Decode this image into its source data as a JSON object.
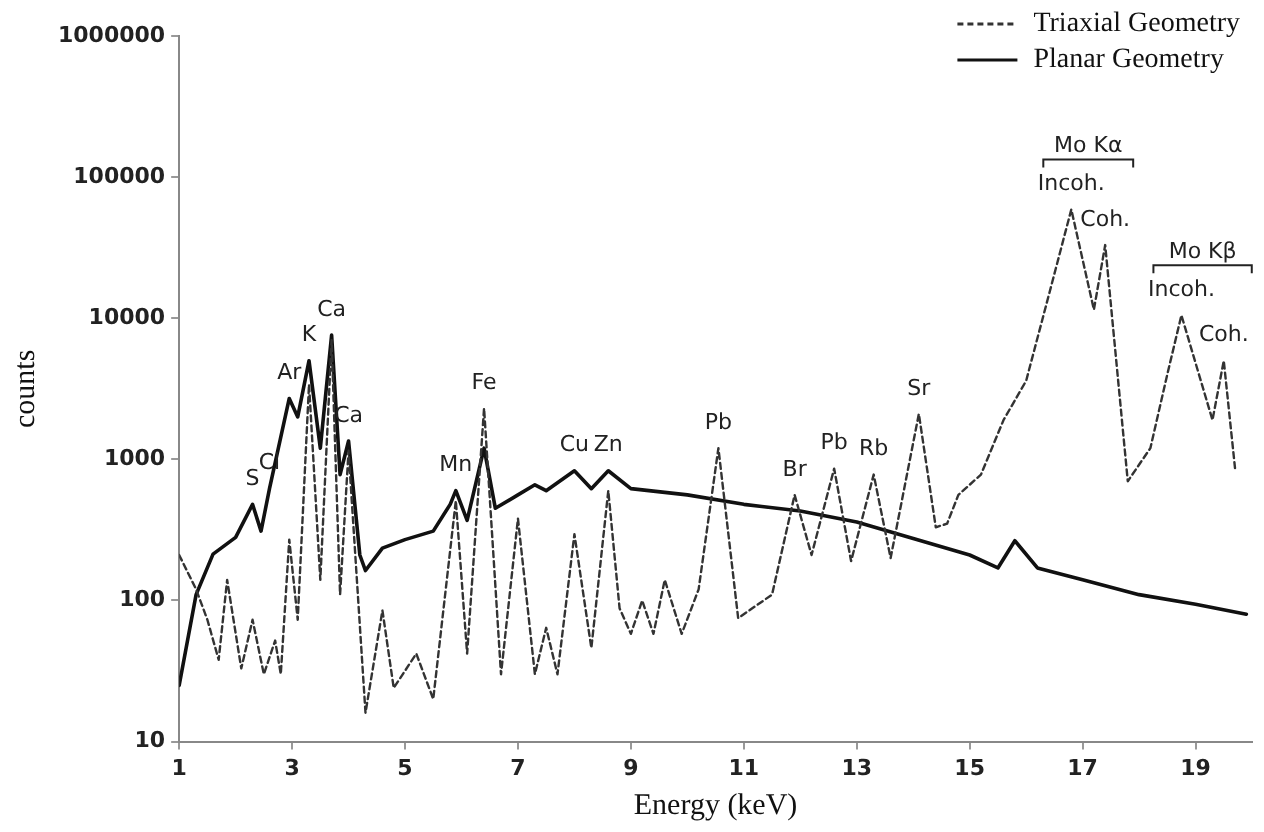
{
  "chart_data": {
    "type": "line",
    "xlabel": "Energy (keV)",
    "ylabel": "counts",
    "log": "y",
    "grid": false,
    "legend": "top right",
    "marker": "none",
    "xlim": [
      1,
      20
    ],
    "xticks": [
      1,
      3,
      5,
      7,
      9,
      11,
      13,
      15,
      17,
      19
    ],
    "ylim": [
      10,
      1000000
    ],
    "yticks": [
      10,
      100,
      1000,
      10000,
      100000,
      1000000
    ],
    "series": [
      {
        "name": "Triaxial Geometry",
        "color": "#333333",
        "line_style": "dashed",
        "x": [
          1,
          1.3,
          1.5,
          1.7,
          1.85,
          2.1,
          2.3,
          2.5,
          2.7,
          2.8,
          2.95,
          3.1,
          3.3,
          3.5,
          3.7,
          3.85,
          4,
          4.3,
          4.6,
          4.8,
          5.2,
          5.5,
          5.9,
          6.1,
          6.4,
          6.7,
          7,
          7.3,
          7.5,
          7.7,
          8,
          8.3,
          8.6,
          8.8,
          9,
          9.2,
          9.4,
          9.6,
          9.9,
          10.2,
          10.55,
          10.9,
          11.5,
          11.9,
          12.2,
          12.6,
          12.9,
          13.3,
          13.6,
          14.1,
          14.4,
          14.6,
          14.8,
          15.2,
          15.6,
          16,
          16.4,
          16.8,
          17.2,
          17.4,
          17.8,
          18.2,
          18.5,
          18.75,
          19.3,
          19.5,
          19.7
        ],
        "values": [
          210,
          120,
          73,
          38,
          140,
          33,
          73,
          30,
          52,
          30,
          270,
          73,
          3400,
          140,
          7000,
          110,
          1150,
          16,
          85,
          24,
          42,
          20,
          510,
          42,
          2300,
          30,
          380,
          30,
          64,
          30,
          295,
          46,
          600,
          88,
          58,
          100,
          58,
          140,
          58,
          120,
          1200,
          75,
          110,
          560,
          210,
          860,
          190,
          780,
          200,
          2100,
          330,
          350,
          560,
          780,
          1900,
          3600,
          14500,
          59000,
          11500,
          33000,
          700,
          1200,
          4000,
          10500,
          1900,
          5000,
          860
        ]
      },
      {
        "name": "Planar Geometry",
        "color": "#111111",
        "line_style": "solid",
        "x": [
          1,
          1.3,
          1.6,
          2,
          2.3,
          2.45,
          2.6,
          2.95,
          3.1,
          3.3,
          3.5,
          3.7,
          3.85,
          4,
          4.2,
          4.3,
          4.6,
          5,
          5.5,
          5.8,
          5.9,
          6.1,
          6.4,
          6.6,
          7,
          7.3,
          7.5,
          8,
          8.3,
          8.6,
          9,
          10,
          11,
          12,
          13,
          14,
          15,
          15.5,
          15.8,
          16.2,
          17,
          18,
          19,
          19.9
        ],
        "values": [
          25,
          110,
          213,
          280,
          480,
          310,
          620,
          2700,
          2000,
          5000,
          1200,
          7600,
          780,
          1350,
          210,
          163,
          235,
          270,
          310,
          480,
          600,
          370,
          1200,
          450,
          560,
          660,
          600,
          830,
          620,
          830,
          620,
          560,
          480,
          430,
          360,
          275,
          210,
          170,
          265,
          170,
          140,
          110,
          94,
          80
        ]
      }
    ],
    "annotations": [
      {
        "text": "S",
        "x": 2.3,
        "y": 480
      },
      {
        "text": "Cl",
        "x": 2.6,
        "y": 620
      },
      {
        "text": "Ar",
        "x": 2.95,
        "y": 2700
      },
      {
        "text": "K",
        "x": 3.3,
        "y": 5000
      },
      {
        "text": "Ca",
        "x": 3.7,
        "y": 7600
      },
      {
        "text": "Ca",
        "x": 4,
        "y": 1350
      },
      {
        "text": "Mn",
        "x": 5.9,
        "y": 600
      },
      {
        "text": "Fe",
        "x": 6.4,
        "y": 2300
      },
      {
        "text": "Cu",
        "x": 8,
        "y": 830
      },
      {
        "text": "Zn",
        "x": 8.6,
        "y": 830
      },
      {
        "text": "Pb",
        "x": 10.55,
        "y": 1200
      },
      {
        "text": "Br",
        "x": 11.9,
        "y": 560
      },
      {
        "text": "Pb",
        "x": 12.6,
        "y": 860
      },
      {
        "text": "Rb",
        "x": 13.3,
        "y": 780
      },
      {
        "text": "Sr",
        "x": 14.1,
        "y": 2100
      },
      "Mo Kα",
      {
        "text": "Incoh.",
        "x": 16.8,
        "y": 59000
      },
      {
        "text": "Coh.",
        "x": 17.4,
        "y": 33000
      },
      "Mo Kβ",
      {
        "text": "Incoh.",
        "x": 18.75,
        "y": 10500
      },
      {
        "text": "Coh.",
        "x": 19.5,
        "y": 5000
      }
    ]
  }
}
